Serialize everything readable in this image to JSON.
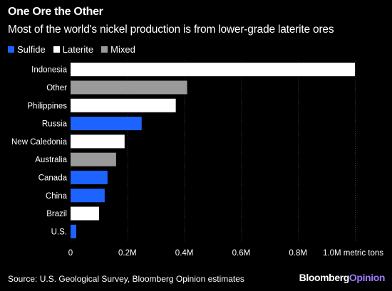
{
  "header": {
    "title": "One Ore the Other",
    "subtitle": "Most of the world's nickel production is from lower-grade laterite ores"
  },
  "legend": [
    {
      "label": "Sulfide",
      "color": "#1d63ff"
    },
    {
      "label": "Laterite",
      "color": "#ffffff"
    },
    {
      "label": "Mixed",
      "color": "#9a9a9a"
    }
  ],
  "chart_data": {
    "type": "bar",
    "orientation": "horizontal",
    "title": "One Ore the Other",
    "subtitle": "Most of the world's nickel production is from lower-grade laterite ores",
    "xlabel": "",
    "ylabel": "",
    "unit": "metric tons",
    "xlim": [
      0,
      1000000
    ],
    "xticks": [
      0,
      200000,
      400000,
      600000,
      800000,
      1000000
    ],
    "xtick_labels": [
      "0",
      "0.2M",
      "0.4M",
      "0.6M",
      "0.8M",
      "1.0M metric tons"
    ],
    "grid": true,
    "legend_position": "top-left",
    "categories": [
      "Indonesia",
      "Other",
      "Philippines",
      "Russia",
      "New Caledonia",
      "Australia",
      "Canada",
      "China",
      "Brazil",
      "U.S."
    ],
    "values": [
      1000000,
      410000,
      370000,
      250000,
      190000,
      160000,
      130000,
      120000,
      100000,
      20000
    ],
    "ore_type": [
      "Laterite",
      "Mixed",
      "Laterite",
      "Sulfide",
      "Laterite",
      "Mixed",
      "Sulfide",
      "Sulfide",
      "Laterite",
      "Sulfide"
    ]
  },
  "footer": {
    "source": "Source: U.S. Geological Survey, Bloomberg Opinion estimates",
    "logo_main": "Bloomberg",
    "logo_accent": "Opinion"
  }
}
